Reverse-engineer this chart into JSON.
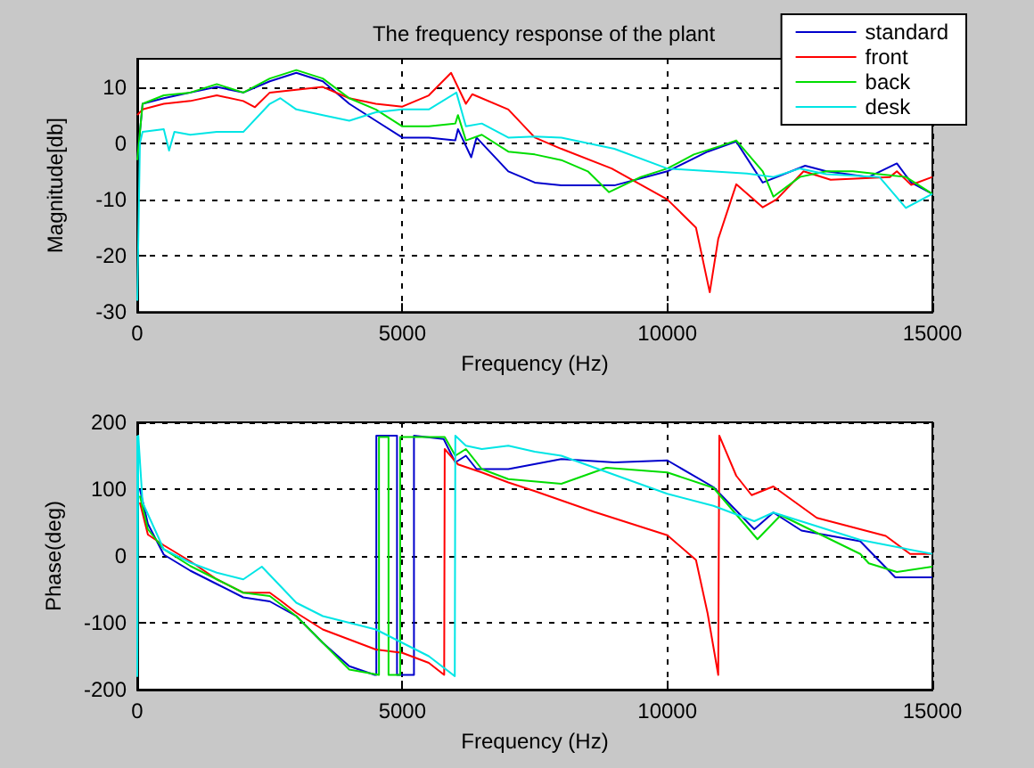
{
  "chart_data": [
    {
      "type": "line",
      "title": "The frequency response of the plant",
      "xlabel": "Frequency (Hz)",
      "ylabel": "Magnitude[db]",
      "xlim": [
        0,
        15000
      ],
      "xticks": [
        0,
        5000,
        10000,
        15000
      ],
      "ylim": [
        -30,
        15
      ],
      "yticks": [
        -30,
        -20,
        -10,
        0,
        10
      ],
      "grid": true,
      "legend": "top right",
      "marker": "none",
      "series": [
        {
          "name": "standard",
          "color": "#0000cc",
          "x": [
            0,
            100,
            500,
            1000,
            1500,
            2000,
            2500,
            3000,
            3500,
            4000,
            4500,
            5000,
            5500,
            6000,
            6050,
            6300,
            6400,
            7000,
            7500,
            8000,
            9000,
            10000,
            10760,
            11300,
            11800,
            12600,
            13000,
            13800,
            14330,
            14600,
            15000
          ],
          "values": [
            -3,
            7,
            8,
            9,
            10,
            9,
            11,
            12.5,
            11,
            7,
            4,
            1,
            1,
            0.5,
            2.5,
            -2.5,
            1,
            -5,
            -7,
            -7.5,
            -7.5,
            -5,
            -1.5,
            0.3,
            -7,
            -4,
            -5,
            -6,
            -3.6,
            -7,
            -9
          ]
        },
        {
          "name": "front",
          "color": "#ff0000",
          "x": [
            0,
            100,
            500,
            1000,
            1500,
            2000,
            2220,
            2500,
            3000,
            3500,
            4000,
            4500,
            5000,
            5500,
            5920,
            6200,
            6320,
            7000,
            7500,
            8000,
            8950,
            10000,
            10540,
            10800,
            10960,
            11300,
            11800,
            12060,
            12570,
            13080,
            14200,
            14330,
            14600,
            15000
          ],
          "values": [
            5,
            6,
            7,
            7.5,
            8.5,
            7.5,
            6.4,
            9,
            9.5,
            10,
            8,
            7,
            6.5,
            8.5,
            12.5,
            7,
            8.7,
            6,
            1,
            -1,
            -4.5,
            -10,
            -15,
            -26.5,
            -17,
            -7.3,
            -11.4,
            -10,
            -5,
            -6.5,
            -6,
            -5,
            -7.4,
            -6
          ]
        },
        {
          "name": "back",
          "color": "#00dd00",
          "x": [
            0,
            100,
            500,
            1000,
            1500,
            2000,
            2500,
            3000,
            3500,
            4000,
            4500,
            5000,
            5500,
            6000,
            6050,
            6200,
            6500,
            7000,
            7500,
            8000,
            8500,
            8900,
            9500,
            10000,
            10500,
            11000,
            11300,
            11800,
            12000,
            12500,
            13000,
            13500,
            14000,
            14500,
            15000
          ],
          "values": [
            -3,
            7,
            8.5,
            9,
            10.5,
            9,
            11.5,
            13,
            11.5,
            8,
            6,
            3,
            3,
            3.5,
            5,
            0.5,
            1.5,
            -1.5,
            -2,
            -3,
            -5,
            -8.7,
            -6,
            -4.5,
            -2,
            -0.5,
            0.5,
            -5,
            -9.5,
            -6,
            -5,
            -5,
            -5.5,
            -6,
            -9
          ]
        },
        {
          "name": "desk",
          "color": "#00e5e5",
          "x": [
            0,
            50,
            100,
            500,
            600,
            700,
            1000,
            1500,
            2000,
            2500,
            2700,
            3000,
            3500,
            4000,
            4500,
            5000,
            5500,
            6020,
            6200,
            6500,
            7000,
            7500,
            8000,
            9000,
            10000,
            11500,
            12000,
            12500,
            13000,
            14000,
            14500,
            15000
          ],
          "values": [
            -28,
            0,
            2,
            2.5,
            -1.3,
            2,
            1.5,
            2,
            2,
            7,
            8,
            6,
            5,
            4,
            5.5,
            6,
            6,
            9,
            3,
            3.5,
            1,
            1.2,
            1,
            -1,
            -4.5,
            -5.4,
            -6,
            -4.5,
            -5.5,
            -6,
            -11.5,
            -9
          ]
        }
      ]
    },
    {
      "type": "line",
      "xlabel": "Frequency (Hz)",
      "ylabel": "Phase(deg)",
      "xlim": [
        0,
        15000
      ],
      "xticks": [
        0,
        5000,
        10000,
        15000
      ],
      "ylim": [
        -200,
        200
      ],
      "yticks": [
        -200,
        -100,
        0,
        100,
        200
      ],
      "grid": true,
      "marker": "none",
      "series": [
        {
          "color": "#0000cc",
          "x": [
            50,
            200,
            500,
            1000,
            1500,
            2000,
            2500,
            3000,
            3500,
            4000,
            4480,
            4510,
            4510,
            4900,
            4900,
            5220,
            5220,
            5780,
            6000,
            6200,
            6400,
            7000,
            8000,
            9000,
            10000,
            10870,
            11640,
            12000,
            12530,
            13640,
            14300,
            15000
          ],
          "values": [
            100,
            48,
            2,
            -22,
            -42,
            -62,
            -68,
            -90,
            -130,
            -165,
            -178,
            -178,
            180,
            180,
            -178,
            -178,
            180,
            175,
            140,
            150,
            130,
            130,
            145,
            140,
            143,
            103,
            40,
            65,
            38,
            22,
            -32,
            -32
          ]
        },
        {
          "color": "#ff0000",
          "x": [
            50,
            200,
            500,
            1000,
            1500,
            2000,
            2500,
            2690,
            3000,
            3500,
            4000,
            4500,
            5000,
            5500,
            5790,
            5800,
            6050,
            6500,
            7000,
            7500,
            8620,
            10000,
            10540,
            10760,
            10960,
            10980,
            11300,
            11590,
            12000,
            12820,
            14120,
            14580,
            15000
          ],
          "values": [
            80,
            32,
            16,
            -8,
            -35,
            -55,
            -55,
            -66,
            -85,
            -110,
            -125,
            -140,
            -145,
            -160,
            -178,
            160,
            137,
            125,
            110,
            97,
            66,
            31,
            -6,
            -86,
            -178,
            180,
            120,
            91,
            104,
            57,
            30,
            3,
            3
          ]
        },
        {
          "color": "#00dd00",
          "x": [
            50,
            200,
            500,
            1000,
            1500,
            2000,
            2500,
            3000,
            3500,
            4000,
            4560,
            4560,
            4740,
            4740,
            4960,
            4960,
            5800,
            6000,
            6200,
            6500,
            7000,
            8000,
            8850,
            10000,
            10870,
            11700,
            12140,
            13640,
            13800,
            14330,
            15000
          ],
          "values": [
            90,
            40,
            10,
            -15,
            -35,
            -55,
            -60,
            -90,
            -130,
            -170,
            -178,
            178,
            178,
            -178,
            -178,
            178,
            178,
            150,
            160,
            130,
            115,
            108,
            132,
            125,
            102,
            25,
            61,
            3,
            -11,
            -24,
            -16
          ]
        },
        {
          "color": "#00e5e5",
          "x": [
            0,
            0,
            20,
            100,
            500,
            1000,
            1500,
            2000,
            2350,
            3000,
            3500,
            4000,
            4500,
            5000,
            5500,
            5990,
            6000,
            6200,
            6500,
            7000,
            7500,
            8000,
            10000,
            10870,
            11640,
            12000,
            13640,
            15000
          ],
          "values": [
            180,
            -180,
            180,
            80,
            10,
            -10,
            -25,
            -35,
            -16,
            -70,
            -90,
            -100,
            -110,
            -130,
            -150,
            -180,
            180,
            165,
            160,
            165,
            156,
            150,
            93,
            75,
            52,
            65,
            24,
            3
          ]
        }
      ]
    }
  ]
}
